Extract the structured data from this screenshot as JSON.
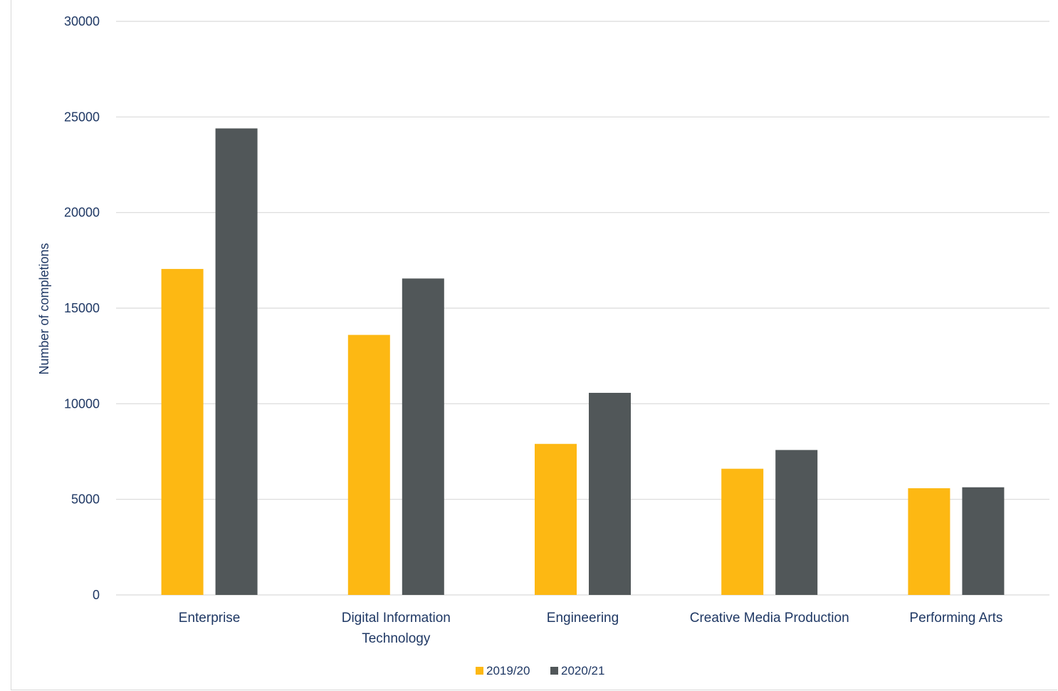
{
  "chart_data": {
    "type": "bar",
    "categories": [
      [
        "Enterprise"
      ],
      [
        "Digital Information",
        "Technology"
      ],
      [
        "Engineering"
      ],
      [
        "Creative Media Production"
      ],
      [
        "Performing Arts"
      ]
    ],
    "series": [
      {
        "name": "2019/20",
        "color": "#FDB813",
        "values": [
          17050,
          13600,
          7900,
          6600,
          5580
        ]
      },
      {
        "name": "2020/21",
        "color": "#515759",
        "values": [
          24400,
          16550,
          10570,
          7580,
          5630
        ]
      }
    ],
    "title": "",
    "xlabel": "",
    "ylabel": "Number of completions",
    "ylim": [
      0,
      30000
    ],
    "yticks": [
      0,
      5000,
      10000,
      15000,
      20000,
      25000,
      30000
    ],
    "grid": true,
    "legend_position": "bottom"
  }
}
